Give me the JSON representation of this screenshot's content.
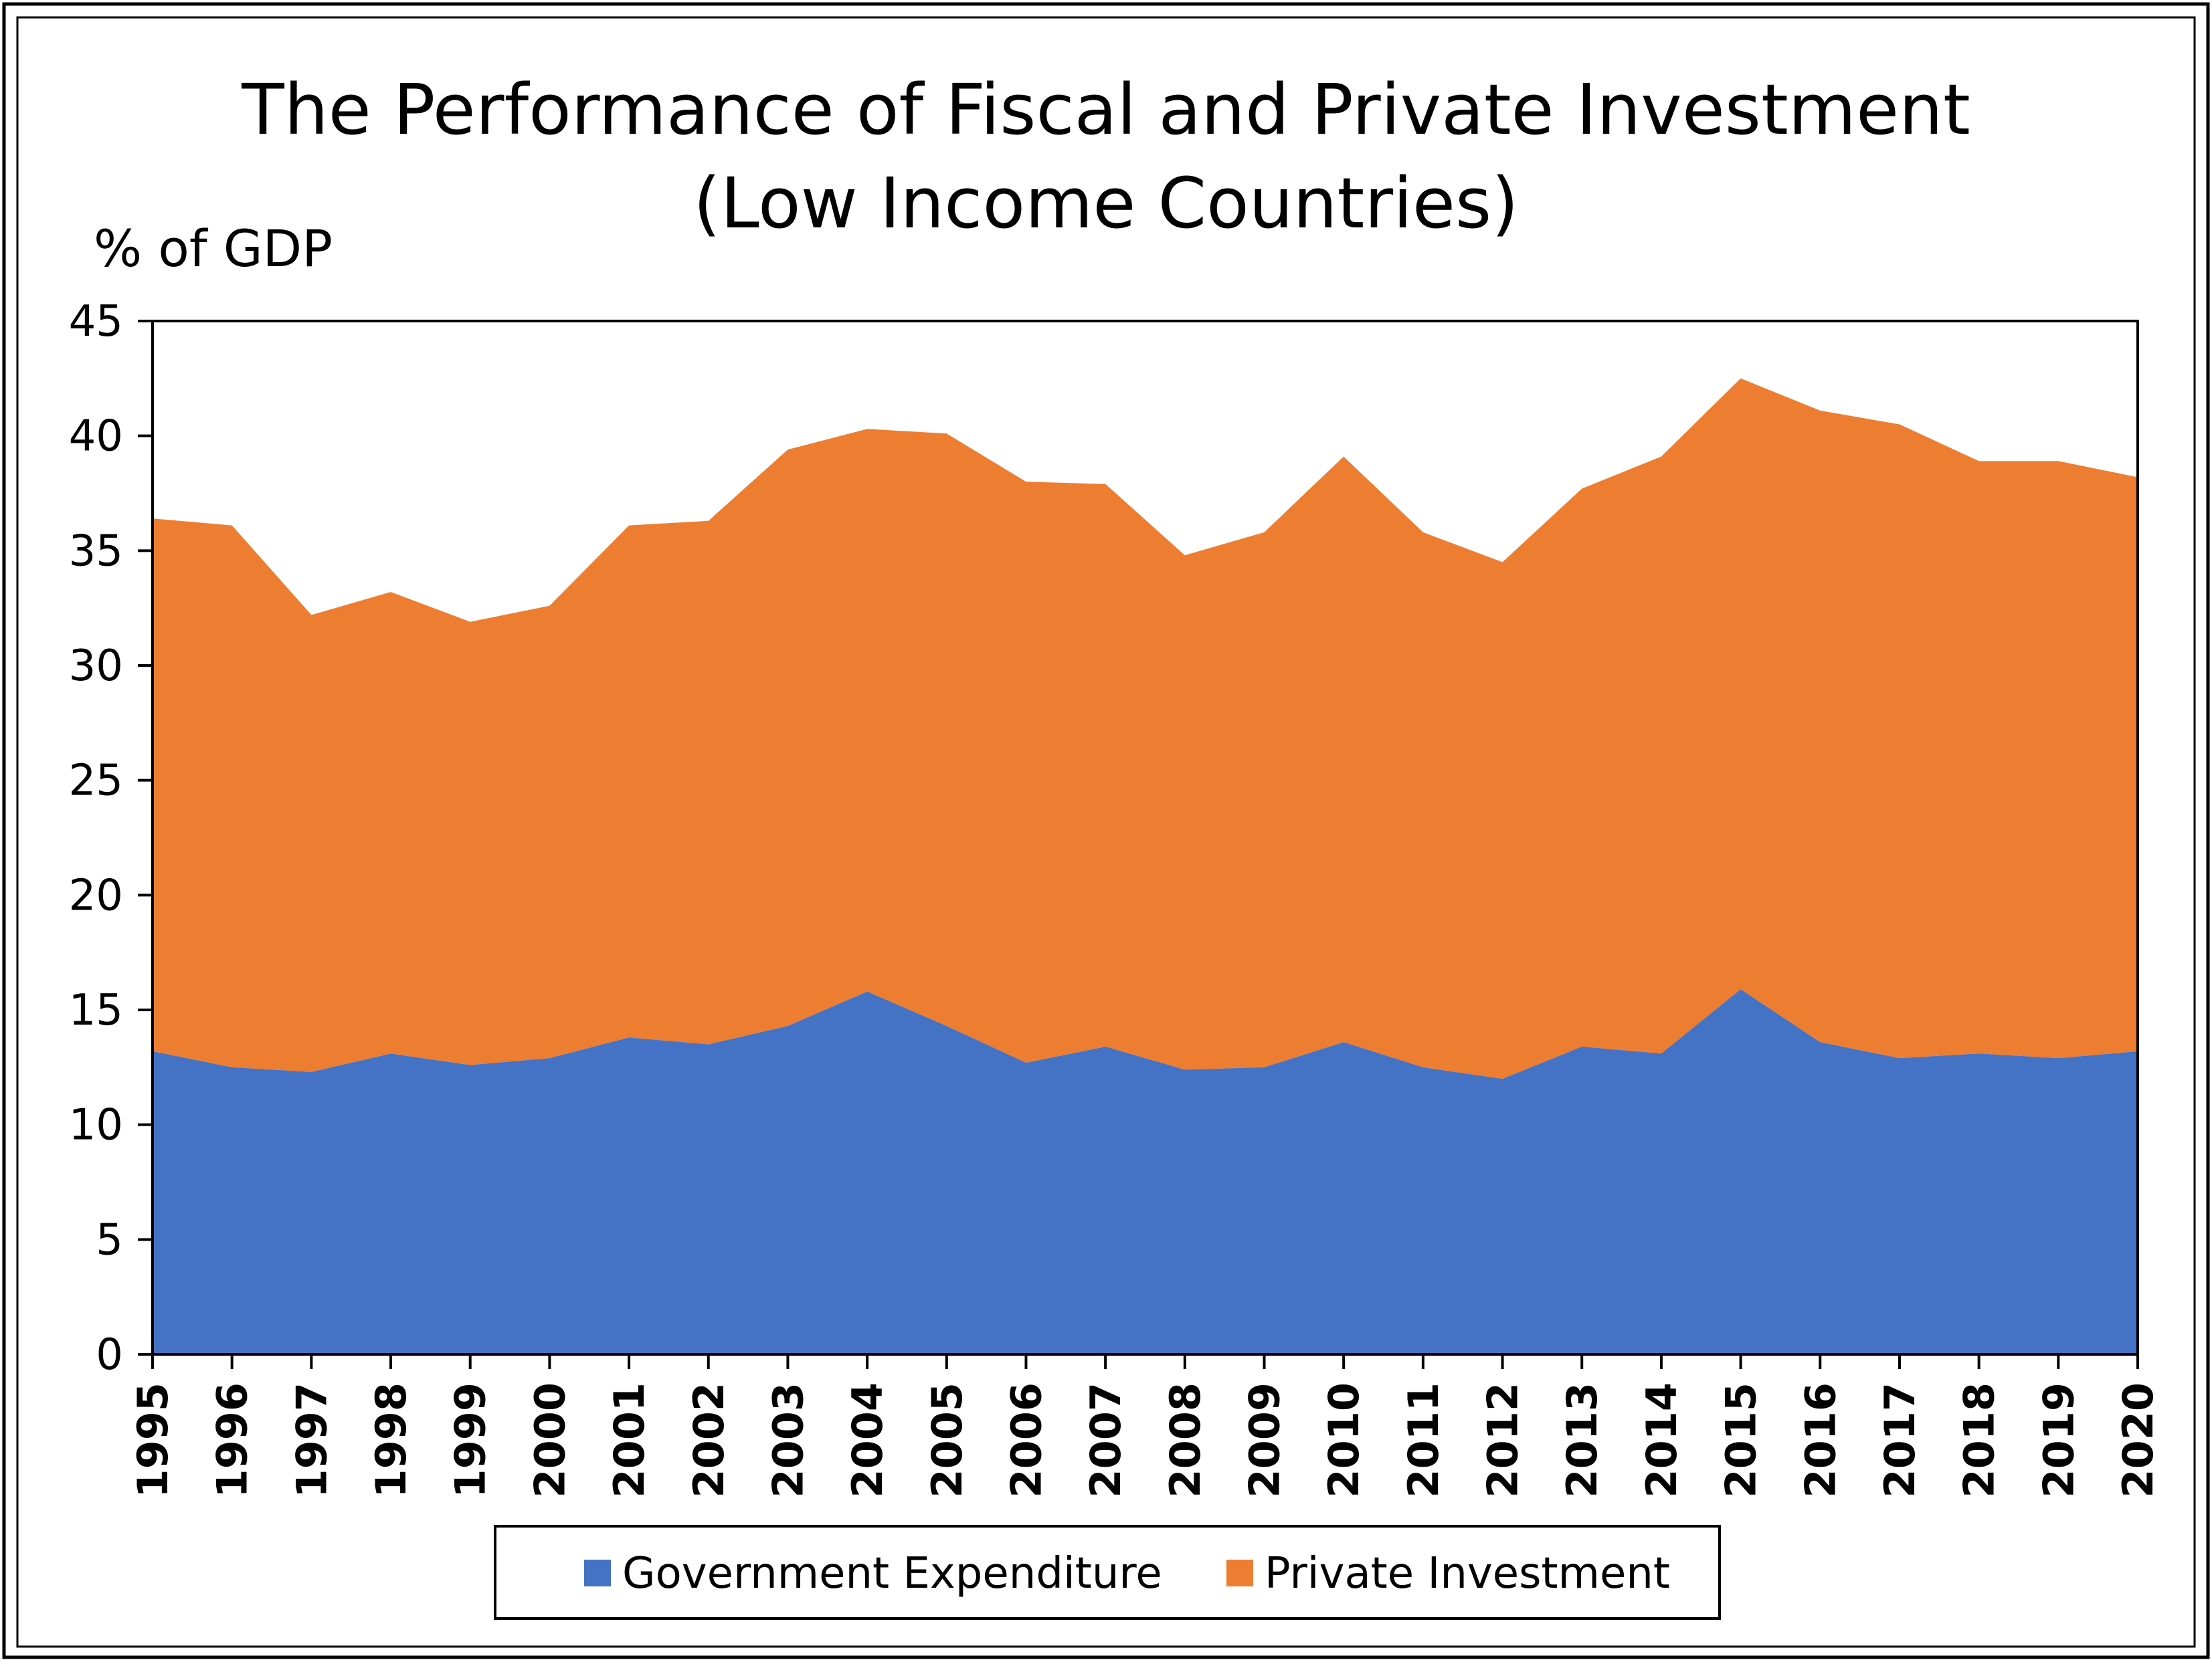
{
  "chart_data": {
    "type": "area",
    "stacked": true,
    "title_lines": [
      "The Performance of Fiscal and Private Investment",
      "(Low Income Countries)"
    ],
    "ylabel": "% of GDP",
    "xlabel": "",
    "ylim": [
      0,
      45
    ],
    "yticks": [
      0,
      5,
      10,
      15,
      20,
      25,
      30,
      35,
      40,
      45
    ],
    "ytick_labels": [
      "0",
      "5",
      "10",
      "15",
      "20",
      "25",
      "30",
      "35",
      "40",
      "45"
    ],
    "grid": false,
    "legend_position": "bottom",
    "x": [
      "1995",
      "1996",
      "1997",
      "1998",
      "1999",
      "2000",
      "2001",
      "2002",
      "2003",
      "2004",
      "2005",
      "2006",
      "2007",
      "2008",
      "2009",
      "2010",
      "2011",
      "2012",
      "2013",
      "2014",
      "2015",
      "2016",
      "2017",
      "2018",
      "2019",
      "2020"
    ],
    "series": [
      {
        "name": "Government Expenditure",
        "color": "#4472C4",
        "values": [
          13.2,
          12.5,
          12.3,
          13.1,
          12.6,
          12.9,
          13.8,
          13.5,
          14.3,
          15.8,
          14.3,
          12.7,
          13.4,
          12.4,
          12.5,
          13.6,
          12.5,
          12.0,
          13.4,
          13.1,
          15.9,
          13.6,
          12.9,
          13.1,
          12.9,
          13.2
        ]
      },
      {
        "name": "Private Investment",
        "color": "#ED7D31",
        "values": [
          23.2,
          23.6,
          19.9,
          20.1,
          19.3,
          19.7,
          22.3,
          22.8,
          25.1,
          24.5,
          25.8,
          25.3,
          24.5,
          22.4,
          23.3,
          25.5,
          23.3,
          22.5,
          24.3,
          26.0,
          26.6,
          27.5,
          27.6,
          25.8,
          26.0,
          25.0
        ]
      }
    ]
  }
}
